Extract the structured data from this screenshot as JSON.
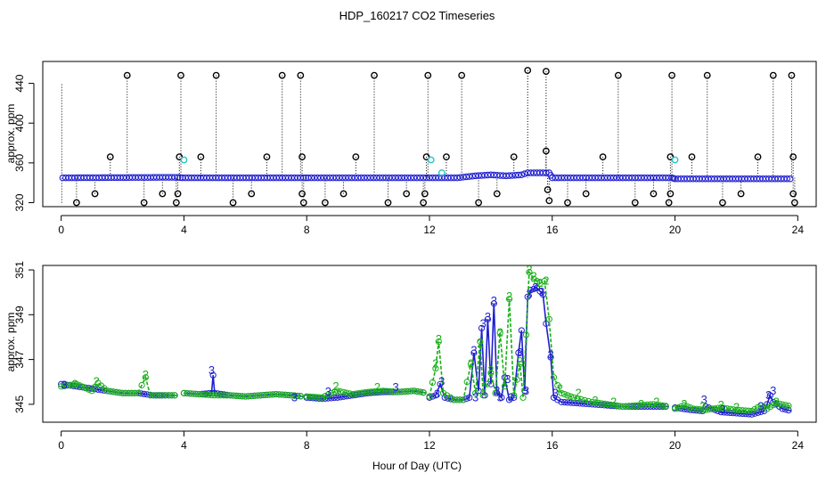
{
  "figure": {
    "title": "HDP_160217  CO2 Timeseries",
    "xlabel": "Hour of Day (UTC)"
  },
  "colors": {
    "black": "#000000",
    "blue": "#1f1fd0",
    "green": "#18b018",
    "cyan": "#20c8c8"
  },
  "chart_data": [
    {
      "type": "scatter",
      "panel": "top",
      "ylabel": "approx. ppm",
      "xlim": [
        -0.6,
        24.6
      ],
      "ylim": [
        316,
        462
      ],
      "x_ticks": [
        0,
        4,
        8,
        12,
        16,
        20,
        24
      ],
      "y_ticks": [
        320,
        360,
        400,
        440
      ],
      "baseline": [
        [
          0.05,
          345
        ],
        [
          3.8,
          345.5
        ],
        [
          3.95,
          345
        ],
        [
          7.9,
          345
        ],
        [
          8.05,
          345
        ],
        [
          11.9,
          345
        ],
        [
          12.2,
          345
        ],
        [
          12.9,
          345
        ],
        [
          13.5,
          347
        ],
        [
          14.0,
          348
        ],
        [
          14.5,
          347
        ],
        [
          15.0,
          348
        ],
        [
          15.2,
          350
        ],
        [
          15.9,
          350
        ],
        [
          16.0,
          345
        ],
        [
          19.9,
          345
        ],
        [
          20.0,
          344
        ],
        [
          23.85,
          344
        ]
      ],
      "spikes_high": [
        [
          2.15,
          448
        ],
        [
          3.9,
          448
        ],
        [
          5.05,
          448
        ],
        [
          7.2,
          448
        ],
        [
          7.8,
          448
        ],
        [
          10.2,
          448
        ],
        [
          11.95,
          448
        ],
        [
          13.05,
          448
        ],
        [
          15.2,
          453
        ],
        [
          15.8,
          452
        ],
        [
          18.15,
          448
        ],
        [
          19.9,
          448
        ],
        [
          21.05,
          448
        ],
        [
          23.2,
          448
        ],
        [
          23.8,
          448
        ]
      ],
      "spikes_mid": [
        [
          1.6,
          366
        ],
        [
          3.85,
          366
        ],
        [
          4.55,
          366
        ],
        [
          6.7,
          366
        ],
        [
          7.85,
          366
        ],
        [
          9.6,
          366
        ],
        [
          11.9,
          366
        ],
        [
          12.55,
          366
        ],
        [
          14.75,
          366
        ],
        [
          15.8,
          372
        ],
        [
          17.65,
          366
        ],
        [
          19.85,
          366
        ],
        [
          20.55,
          366
        ],
        [
          22.7,
          366
        ],
        [
          23.85,
          366
        ]
      ],
      "spikes_low": [
        [
          0.5,
          320
        ],
        [
          1.1,
          329
        ],
        [
          2.7,
          320
        ],
        [
          3.3,
          329
        ],
        [
          3.75,
          320
        ],
        [
          3.8,
          329
        ],
        [
          5.6,
          320
        ],
        [
          6.2,
          329
        ],
        [
          7.85,
          329
        ],
        [
          7.9,
          320
        ],
        [
          8.6,
          320
        ],
        [
          9.2,
          329
        ],
        [
          10.65,
          320
        ],
        [
          11.25,
          329
        ],
        [
          11.8,
          320
        ],
        [
          11.85,
          329
        ],
        [
          13.6,
          320
        ],
        [
          14.2,
          329
        ],
        [
          15.9,
          322
        ],
        [
          15.85,
          333
        ],
        [
          16.5,
          320
        ],
        [
          17.1,
          329
        ],
        [
          18.7,
          320
        ],
        [
          19.3,
          329
        ],
        [
          19.8,
          320
        ],
        [
          19.85,
          329
        ],
        [
          21.55,
          320
        ],
        [
          22.15,
          329
        ],
        [
          23.85,
          329
        ],
        [
          23.9,
          320
        ]
      ],
      "cyan_points": [
        [
          4.0,
          363
        ],
        [
          12.05,
          363
        ],
        [
          20.0,
          363
        ],
        [
          12.4,
          350
        ]
      ]
    },
    {
      "type": "line",
      "panel": "bottom",
      "ylabel": "approx. ppm",
      "xlim": [
        -0.6,
        24.6
      ],
      "ylim": [
        344.2,
        351.2
      ],
      "x_ticks": [
        0,
        4,
        8,
        12,
        16,
        20,
        24
      ],
      "y_ticks": [
        345,
        347,
        349,
        351
      ],
      "series": [
        {
          "values": [
            [
              0.0,
              345.9
            ],
            [
              0.5,
              345.8
            ],
            [
              1.0,
              345.7
            ],
            [
              1.5,
              345.6
            ],
            [
              2.0,
              345.5
            ],
            [
              2.5,
              345.5
            ],
            [
              3.0,
              345.4
            ],
            [
              3.5,
              345.4
            ],
            [
              3.8,
              345.4
            ],
            [
              null,
              null
            ],
            [
              4.0,
              345.5
            ],
            [
              4.5,
              345.45
            ],
            [
              4.9,
              345.5
            ],
            [
              4.95,
              346.3
            ],
            [
              5.0,
              345.5
            ],
            [
              5.5,
              345.4
            ],
            [
              6.0,
              345.35
            ],
            [
              6.5,
              345.4
            ],
            [
              7.0,
              345.45
            ],
            [
              7.5,
              345.4
            ],
            [
              7.9,
              345.35
            ],
            [
              null,
              null
            ],
            [
              8.0,
              345.3
            ],
            [
              8.5,
              345.25
            ],
            [
              9.0,
              345.3
            ],
            [
              9.5,
              345.4
            ],
            [
              10.0,
              345.5
            ],
            [
              10.5,
              345.55
            ],
            [
              11.0,
              345.55
            ],
            [
              11.5,
              345.6
            ],
            [
              11.9,
              345.5
            ],
            [
              null,
              null
            ],
            [
              12.0,
              345.3
            ],
            [
              12.2,
              345.4
            ],
            [
              12.35,
              345.9
            ],
            [
              12.5,
              345.3
            ],
            [
              12.8,
              345.2
            ],
            [
              13.1,
              345.2
            ],
            [
              13.3,
              345.3
            ],
            [
              13.45,
              347.3
            ],
            [
              13.6,
              345.6
            ],
            [
              13.7,
              348.4
            ],
            [
              13.8,
              345.4
            ],
            [
              13.9,
              348.8
            ],
            [
              14.0,
              345.9
            ],
            [
              14.1,
              349.5
            ],
            [
              14.2,
              345.5
            ],
            [
              14.35,
              345.3
            ],
            [
              14.45,
              346.2
            ],
            [
              14.6,
              345.2
            ],
            [
              14.75,
              345.3
            ],
            [
              14.9,
              347.3
            ],
            [
              15.0,
              348.3
            ],
            [
              15.1,
              345.6
            ],
            [
              15.2,
              349.8
            ],
            [
              15.3,
              350.1
            ],
            [
              15.5,
              350.2
            ],
            [
              15.7,
              349.9
            ],
            [
              15.8,
              348.6
            ],
            [
              15.95,
              347.1
            ],
            [
              16.05,
              345.3
            ],
            [
              16.3,
              345.1
            ],
            [
              16.8,
              345.05
            ],
            [
              17.3,
              345.0
            ],
            [
              17.8,
              344.95
            ],
            [
              18.3,
              344.9
            ],
            [
              18.8,
              344.9
            ],
            [
              19.3,
              344.9
            ],
            [
              19.8,
              344.9
            ],
            [
              null,
              null
            ],
            [
              20.0,
              344.85
            ],
            [
              20.5,
              344.75
            ],
            [
              20.9,
              344.7
            ],
            [
              21.0,
              344.9
            ],
            [
              21.5,
              344.65
            ],
            [
              22.0,
              344.6
            ],
            [
              22.5,
              344.55
            ],
            [
              22.9,
              344.7
            ],
            [
              23.0,
              345.0
            ],
            [
              23.1,
              345.4
            ],
            [
              23.2,
              345.1
            ],
            [
              23.5,
              344.8
            ],
            [
              23.8,
              344.7
            ]
          ]
        },
        {
          "values": [
            [
              0.0,
              345.8
            ],
            [
              0.5,
              345.9
            ],
            [
              1.0,
              345.6
            ],
            [
              1.2,
              345.95
            ],
            [
              1.5,
              345.6
            ],
            [
              2.0,
              345.5
            ],
            [
              2.5,
              345.5
            ],
            [
              2.75,
              346.2
            ],
            [
              2.9,
              345.4
            ],
            [
              3.5,
              345.4
            ],
            [
              3.8,
              345.4
            ],
            [
              null,
              null
            ],
            [
              4.0,
              345.5
            ],
            [
              4.5,
              345.45
            ],
            [
              5.0,
              345.4
            ],
            [
              5.5,
              345.4
            ],
            [
              6.0,
              345.35
            ],
            [
              6.5,
              345.4
            ],
            [
              7.0,
              345.45
            ],
            [
              7.5,
              345.4
            ],
            [
              7.9,
              345.35
            ],
            [
              null,
              null
            ],
            [
              8.0,
              345.35
            ],
            [
              8.5,
              345.3
            ],
            [
              8.8,
              345.5
            ],
            [
              9.0,
              345.6
            ],
            [
              9.5,
              345.45
            ],
            [
              10.0,
              345.55
            ],
            [
              10.5,
              345.6
            ],
            [
              11.0,
              345.55
            ],
            [
              11.5,
              345.6
            ],
            [
              11.9,
              345.5
            ],
            [
              null,
              null
            ],
            [
              12.0,
              345.35
            ],
            [
              12.2,
              346.6
            ],
            [
              12.3,
              347.8
            ],
            [
              12.45,
              345.5
            ],
            [
              12.8,
              345.2
            ],
            [
              13.1,
              345.2
            ],
            [
              13.35,
              346.8
            ],
            [
              13.5,
              345.5
            ],
            [
              13.65,
              347.8
            ],
            [
              13.75,
              345.4
            ],
            [
              14.0,
              346.4
            ],
            [
              14.15,
              345.5
            ],
            [
              14.3,
              348.2
            ],
            [
              14.45,
              345.8
            ],
            [
              14.6,
              349.7
            ],
            [
              14.75,
              345.4
            ],
            [
              14.95,
              346.8
            ],
            [
              15.05,
              345.3
            ],
            [
              15.25,
              350.9
            ],
            [
              15.4,
              350.6
            ],
            [
              15.6,
              350.4
            ],
            [
              15.75,
              350.5
            ],
            [
              15.9,
              348.8
            ],
            [
              16.05,
              346.2
            ],
            [
              16.3,
              345.5
            ],
            [
              16.7,
              345.3
            ],
            [
              17.3,
              345.1
            ],
            [
              17.8,
              345.0
            ],
            [
              18.3,
              344.9
            ],
            [
              18.8,
              344.95
            ],
            [
              19.3,
              345.0
            ],
            [
              19.8,
              344.9
            ],
            [
              null,
              null
            ],
            [
              20.0,
              344.8
            ],
            [
              20.3,
              344.95
            ],
            [
              20.6,
              344.8
            ],
            [
              21.0,
              344.75
            ],
            [
              21.5,
              344.85
            ],
            [
              22.0,
              344.75
            ],
            [
              22.5,
              344.7
            ],
            [
              22.8,
              344.95
            ],
            [
              23.0,
              344.8
            ],
            [
              23.3,
              345.05
            ],
            [
              23.8,
              344.9
            ]
          ]
        }
      ],
      "labels_3": [
        [
          0.1,
          345.85
        ],
        [
          4.9,
          346.5
        ],
        [
          7.6,
          345.3
        ],
        [
          8.7,
          345.55
        ],
        [
          10.9,
          345.75
        ],
        [
          12.25,
          345.45
        ],
        [
          12.4,
          346.0
        ],
        [
          13.45,
          347.4
        ],
        [
          13.5,
          345.3
        ],
        [
          13.75,
          348.6
        ],
        [
          13.9,
          348.9
        ],
        [
          14.1,
          349.6
        ],
        [
          14.2,
          345.6
        ],
        [
          14.3,
          345.3
        ],
        [
          14.55,
          346.1
        ],
        [
          14.65,
          345.3
        ],
        [
          14.95,
          347.3
        ],
        [
          15.15,
          345.6
        ],
        [
          15.25,
          349.9
        ],
        [
          15.45,
          350.2
        ],
        [
          15.65,
          350.0
        ],
        [
          15.95,
          347.2
        ],
        [
          16.1,
          345.5
        ],
        [
          20.95,
          345.2
        ],
        [
          21.55,
          344.75
        ],
        [
          22.8,
          344.9
        ],
        [
          23.05,
          345.4
        ],
        [
          23.2,
          345.6
        ]
      ],
      "labels_2": [
        [
          0.45,
          345.9
        ],
        [
          1.15,
          346.0
        ],
        [
          2.75,
          346.3
        ],
        [
          8.95,
          345.8
        ],
        [
          10.3,
          345.75
        ],
        [
          12.2,
          346.8
        ],
        [
          12.3,
          347.9
        ],
        [
          13.35,
          346.8
        ],
        [
          13.65,
          347.7
        ],
        [
          14.0,
          346.5
        ],
        [
          14.3,
          348.2
        ],
        [
          14.6,
          349.8
        ],
        [
          14.95,
          346.9
        ],
        [
          15.25,
          351.0
        ],
        [
          15.4,
          350.7
        ],
        [
          15.6,
          350.4
        ],
        [
          15.8,
          350.5
        ],
        [
          16.25,
          345.7
        ],
        [
          16.85,
          345.5
        ],
        [
          17.4,
          345.15
        ],
        [
          18.0,
          345.1
        ],
        [
          18.9,
          345.0
        ],
        [
          19.4,
          345.1
        ],
        [
          20.3,
          345.0
        ],
        [
          20.9,
          344.9
        ],
        [
          21.5,
          344.95
        ],
        [
          22.0,
          344.85
        ],
        [
          23.3,
          345.1
        ]
      ]
    }
  ]
}
